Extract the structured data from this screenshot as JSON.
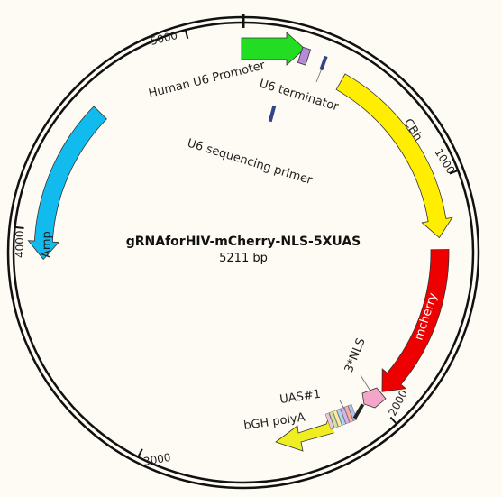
{
  "plasmid": {
    "name": "gRNAforHIV-mCherry-NLS-5XUAS",
    "size_label": "5211 bp",
    "size_bp": 5211
  },
  "ticks": [
    {
      "label": "1000",
      "bp": 1000
    },
    {
      "label": "2000",
      "bp": 2000
    },
    {
      "label": "3000",
      "bp": 3000
    },
    {
      "label": "4000",
      "bp": 4000
    },
    {
      "label": "5000",
      "bp": 5000
    }
  ],
  "features": [
    {
      "name": "Human U6 Promoter",
      "start_bp": 0,
      "end_bp": 249,
      "direction": "cw",
      "color": "#22dd22",
      "label_inside": false
    },
    {
      "name": "CBh",
      "start_bp": 430,
      "end_bp": 1240,
      "direction": "cw",
      "color": "#ffee00",
      "label_inside": true
    },
    {
      "name": "mcherry",
      "start_bp": 1290,
      "end_bp": 1955,
      "direction": "cw",
      "color": "#ee0000",
      "label_inside": true
    },
    {
      "name": "3*NLS",
      "start_bp": 1960,
      "end_bp": 2030,
      "direction": "cw",
      "color": "#f3a6c8",
      "label_inside": false
    },
    {
      "name": "bGH polyA",
      "start_bp": 2260,
      "end_bp": 2710,
      "direction": "ccw",
      "color": "#eeee22",
      "label_inside": false
    },
    {
      "name": "Amp",
      "start_bp": 3880,
      "end_bp": 4550,
      "direction": "ccw",
      "color": "#11bbee",
      "label_inside": true
    }
  ],
  "small_features": [
    {
      "name": "U6 terminator",
      "bp": 335,
      "color": "#334488"
    },
    {
      "name": "U6 sequencing primer",
      "bp": 260,
      "color": "#334488"
    },
    {
      "name": "UAS#1",
      "bp": 2150,
      "color": "#222222"
    }
  ],
  "labels": {
    "u6_promoter": "Human U6 Promoter",
    "u6_terminator": "U6 terminator",
    "u6_seq_primer": "U6 sequencing primer",
    "cbh": "CBh",
    "mcherry": "mcherry",
    "nls": "3*NLS",
    "uas": "UAS#1",
    "bgh": "bGH polyA",
    "amp": "Amp"
  },
  "colors": {
    "background": "#fdfbf3",
    "backbone": "#111111",
    "purple_box": "#b58ad8",
    "uas_stripes": [
      "#f3c4d8",
      "#c7e6a6",
      "#ffe7a6",
      "#a6d8f0",
      "#d8b0f0",
      "#f4b0a0",
      "#b0c0f0"
    ]
  }
}
